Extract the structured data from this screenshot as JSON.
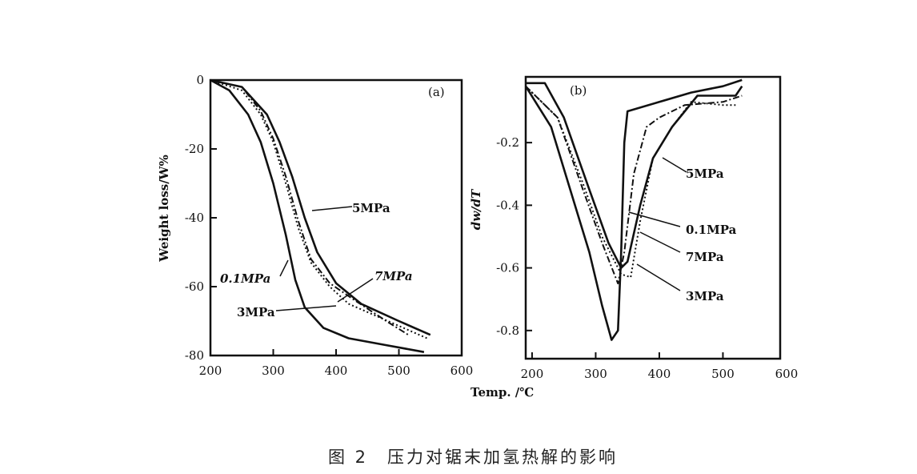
{
  "caption": "图 2　压力对锯末加氢热解的影响",
  "chart_data": [
    {
      "type": "line",
      "panel_label": "(a)",
      "xlabel": "Temp. /℃",
      "ylabel": "Weight loss/W%",
      "xlim": [
        200,
        600
      ],
      "ylim": [
        -80,
        0
      ],
      "xticks": [
        "200",
        "300",
        "400",
        "500",
        "600"
      ],
      "yticks": [
        "0",
        "-20",
        "-40",
        "-60",
        "-80"
      ],
      "ytick_values": [
        0,
        -20,
        -40,
        -60,
        -80
      ],
      "grid": false,
      "series": [
        {
          "name": "0.1MPa",
          "style": "solid",
          "x": [
            200,
            230,
            260,
            280,
            300,
            320,
            335,
            350,
            380,
            420,
            480,
            540
          ],
          "y": [
            0,
            -3,
            -10,
            -18,
            -30,
            -45,
            -58,
            -66,
            -72,
            -75,
            -77,
            -79
          ]
        },
        {
          "name": "3MPa",
          "style": "dotted",
          "x": [
            200,
            250,
            280,
            300,
            320,
            340,
            360,
            390,
            420,
            470,
            520,
            545
          ],
          "y": [
            0,
            -3,
            -10,
            -18,
            -30,
            -43,
            -53,
            -60,
            -65,
            -69,
            -73,
            -75
          ]
        },
        {
          "name": "7MPa",
          "style": "dashdot",
          "x": [
            200,
            250,
            280,
            300,
            320,
            340,
            360,
            390,
            430,
            480,
            515
          ],
          "y": [
            0,
            -2,
            -9,
            -17,
            -28,
            -41,
            -52,
            -59,
            -64,
            -70,
            -74
          ]
        },
        {
          "name": "5MPa",
          "style": "solid",
          "x": [
            200,
            250,
            290,
            310,
            330,
            350,
            370,
            400,
            440,
            500,
            550
          ],
          "y": [
            0,
            -2,
            -10,
            -18,
            -28,
            -40,
            -50,
            -59,
            -65,
            -70,
            -74
          ]
        }
      ]
    },
    {
      "type": "line",
      "panel_label": "(b)",
      "xlabel": "",
      "ylabel": "dw/dT",
      "xlim": [
        190,
        590
      ],
      "ylim": [
        -0.89,
        0.01
      ],
      "xticks": [
        "200",
        "300",
        "400",
        "500",
        "600"
      ],
      "xtick_values": [
        200,
        300,
        400,
        500,
        600
      ],
      "yticks": [
        "-0.2",
        "-0.4",
        "-0.6",
        "-0.8"
      ],
      "ytick_values": [
        -0.2,
        -0.4,
        -0.6,
        -0.8
      ],
      "grid": false,
      "series": [
        {
          "name": "0.1MPa",
          "style": "solid",
          "x": [
            190,
            230,
            260,
            290,
            310,
            325,
            335,
            340,
            345,
            350,
            400,
            450,
            500,
            530
          ],
          "y": [
            -0.02,
            -0.15,
            -0.35,
            -0.55,
            -0.72,
            -0.83,
            -0.8,
            -0.55,
            -0.2,
            -0.1,
            -0.07,
            -0.04,
            -0.02,
            0
          ]
        },
        {
          "name": "5MPa",
          "style": "solid",
          "x": [
            190,
            220,
            250,
            290,
            320,
            340,
            350,
            370,
            390,
            420,
            440,
            460,
            520,
            530
          ],
          "y": [
            -0.01,
            -0.01,
            -0.12,
            -0.35,
            -0.52,
            -0.6,
            -0.58,
            -0.4,
            -0.25,
            -0.15,
            -0.1,
            -0.05,
            -0.05,
            -0.02
          ]
        },
        {
          "name": "7MPa",
          "style": "dashdot",
          "x": [
            190,
            240,
            280,
            310,
            335,
            345,
            360,
            380,
            400,
            440,
            500,
            530
          ],
          "y": [
            -0.02,
            -0.12,
            -0.35,
            -0.52,
            -0.65,
            -0.55,
            -0.3,
            -0.15,
            -0.12,
            -0.08,
            -0.07,
            -0.05
          ]
        },
        {
          "name": "3MPa",
          "style": "dotted",
          "x": [
            190,
            240,
            280,
            310,
            340,
            355,
            370,
            390,
            420,
            450,
            500,
            520
          ],
          "y": [
            -0.02,
            -0.12,
            -0.33,
            -0.5,
            -0.62,
            -0.63,
            -0.45,
            -0.25,
            -0.15,
            -0.07,
            -0.08,
            -0.08
          ]
        }
      ]
    }
  ]
}
